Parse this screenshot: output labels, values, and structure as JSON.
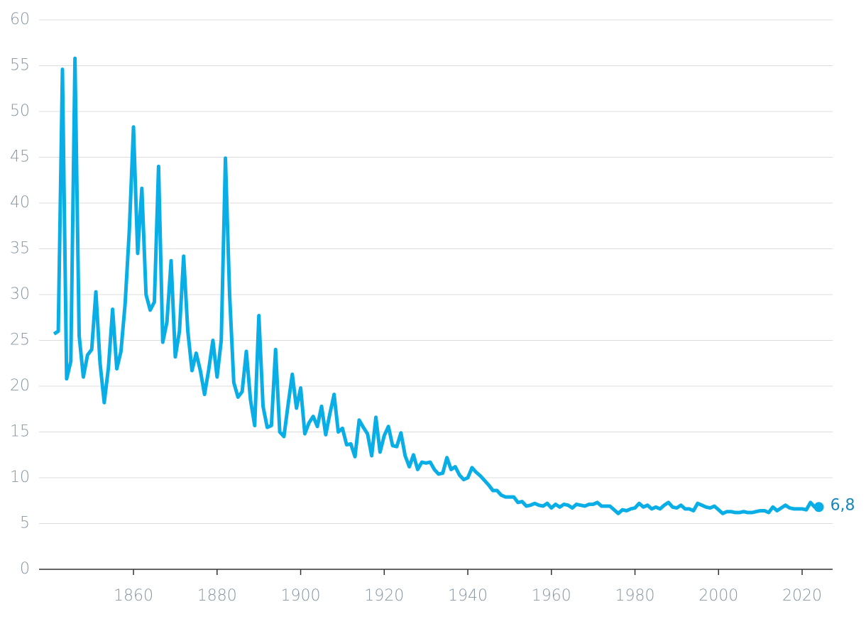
{
  "chart_data": {
    "type": "line",
    "x": [
      1841,
      1842,
      1843,
      1844,
      1845,
      1846,
      1847,
      1848,
      1849,
      1850,
      1851,
      1852,
      1853,
      1854,
      1855,
      1856,
      1857,
      1858,
      1859,
      1860,
      1861,
      1862,
      1863,
      1864,
      1865,
      1866,
      1867,
      1868,
      1869,
      1870,
      1871,
      1872,
      1873,
      1874,
      1875,
      1876,
      1877,
      1878,
      1879,
      1880,
      1881,
      1882,
      1883,
      1884,
      1885,
      1886,
      1887,
      1888,
      1889,
      1890,
      1891,
      1892,
      1893,
      1894,
      1895,
      1896,
      1897,
      1898,
      1899,
      1900,
      1901,
      1902,
      1903,
      1904,
      1905,
      1906,
      1907,
      1908,
      1909,
      1910,
      1911,
      1912,
      1913,
      1914,
      1915,
      1916,
      1917,
      1918,
      1919,
      1920,
      1921,
      1922,
      1923,
      1924,
      1925,
      1926,
      1927,
      1928,
      1929,
      1930,
      1931,
      1932,
      1933,
      1934,
      1935,
      1936,
      1937,
      1938,
      1939,
      1940,
      1941,
      1942,
      1943,
      1944,
      1945,
      1946,
      1947,
      1948,
      1949,
      1950,
      1951,
      1952,
      1953,
      1954,
      1955,
      1956,
      1957,
      1958,
      1959,
      1960,
      1961,
      1962,
      1963,
      1964,
      1965,
      1966,
      1967,
      1968,
      1969,
      1970,
      1971,
      1972,
      1973,
      1974,
      1975,
      1976,
      1977,
      1978,
      1979,
      1980,
      1981,
      1982,
      1983,
      1984,
      1985,
      1986,
      1987,
      1988,
      1989,
      1990,
      1991,
      1992,
      1993,
      1994,
      1995,
      1996,
      1997,
      1998,
      1999,
      2000,
      2001,
      2002,
      2003,
      2004,
      2005,
      2006,
      2007,
      2008,
      2009,
      2010,
      2011,
      2012,
      2013,
      2014,
      2015,
      2016,
      2017,
      2018,
      2019,
      2020,
      2021,
      2022,
      2023,
      2024
    ],
    "values": [
      25.7,
      26,
      54.6,
      20.8,
      22.7,
      55.8,
      25.5,
      21,
      23.4,
      24,
      30.3,
      22.5,
      18.2,
      22,
      28.4,
      21.9,
      23.8,
      29,
      37,
      48.3,
      34.5,
      41.6,
      30,
      28.3,
      29.2,
      44,
      24.8,
      27,
      33.7,
      23.2,
      26,
      34.2,
      26,
      21.7,
      23.6,
      21.7,
      19.1,
      21.8,
      25,
      21,
      25,
      44.9,
      30,
      20.4,
      18.8,
      19.4,
      23.8,
      18.5,
      15.7,
      27.7,
      17.8,
      15.5,
      15.7,
      24,
      15,
      14.5,
      18,
      21.3,
      17.6,
      19.8,
      14.8,
      16,
      16.7,
      15.6,
      17.8,
      14.7,
      17,
      19.1,
      15,
      15.4,
      13.6,
      13.7,
      12.3,
      16.3,
      15.5,
      14.8,
      12.4,
      16.6,
      12.8,
      14.6,
      15.6,
      13.5,
      13.4,
      14.9,
      12.4,
      11.2,
      12.5,
      10.9,
      11.7,
      11.6,
      11.7,
      10.9,
      10.4,
      10.5,
      12.2,
      10.9,
      11.2,
      10.3,
      9.8,
      10,
      11.1,
      10.6,
      10.2,
      9.7,
      9.2,
      8.6,
      8.6,
      8.1,
      7.9,
      7.9,
      7.9,
      7.3,
      7.4,
      6.9,
      7,
      7.2,
      7,
      6.9,
      7.2,
      6.7,
      7.1,
      6.8,
      7.1,
      7,
      6.7,
      7.1,
      7,
      6.9,
      7.1,
      7.1,
      7.3,
      6.9,
      6.9,
      6.9,
      6.5,
      6.1,
      6.5,
      6.4,
      6.6,
      6.7,
      7.2,
      6.8,
      7,
      6.6,
      6.8,
      6.6,
      7,
      7.3,
      6.8,
      6.7,
      7,
      6.6,
      6.6,
      6.4,
      7.2,
      7,
      6.8,
      6.7,
      6.9,
      6.5,
      6.1,
      6.3,
      6.3,
      6.2,
      6.2,
      6.3,
      6.2,
      6.2,
      6.3,
      6.4,
      6.4,
      6.2,
      6.8,
      6.4,
      6.7,
      7,
      6.7,
      6.6,
      6.6,
      6.6,
      6.5,
      7.3,
      6.8,
      6.8
    ],
    "end_label": "6,8",
    "color": "#0aaee6",
    "xlim": [
      1837.4,
      2027.3
    ],
    "xticks": [
      1860,
      1880,
      1900,
      1920,
      1940,
      1960,
      1980,
      2000,
      2020
    ],
    "ylim": [
      0,
      60
    ],
    "yticks": [
      0,
      5,
      10,
      15,
      20,
      25,
      30,
      35,
      40,
      45,
      50,
      55,
      60
    ],
    "grid": true
  }
}
